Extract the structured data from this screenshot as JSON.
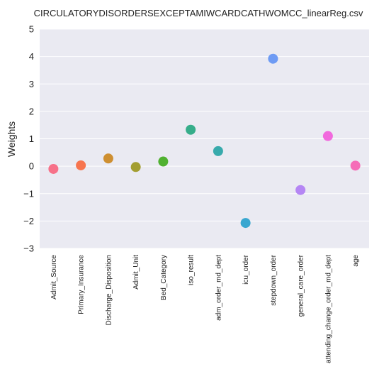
{
  "chart_data": {
    "type": "scatter",
    "title": "CIRCULATORYDISORDERSEXCEPTAMIWCARDCATHWOMCC_linearReg.csv",
    "xlabel": "",
    "ylabel": "Weights",
    "ylim": [
      -3,
      5
    ],
    "yticks": [
      -3,
      -2,
      -1,
      0,
      1,
      2,
      3,
      4,
      5
    ],
    "ytick_labels": [
      "−3",
      "−2",
      "−1",
      "0",
      "1",
      "2",
      "3",
      "4",
      "5"
    ],
    "grid": true,
    "categories": [
      "Admit_Source",
      "Primary_Insurance",
      "Discharge_Disposition",
      "Admit_Unit",
      "Bed_Category",
      "iso_result",
      "adm_order_md_dept",
      "icu_order",
      "stepdown_order",
      "general_care_order",
      "attending_change_order_md_dept",
      "age"
    ],
    "values": [
      -0.1,
      0.03,
      0.28,
      -0.03,
      0.17,
      1.33,
      0.55,
      -2.07,
      3.92,
      -0.87,
      1.1,
      0.02
    ],
    "colors": [
      "#f77189",
      "#f7754f",
      "#ce8f31",
      "#a39e31",
      "#50b131",
      "#36ad8a",
      "#38aaac",
      "#39a7d0",
      "#6e9bf4",
      "#b586f4",
      "#f169dd",
      "#f56db8"
    ],
    "background": "#eaeaf2"
  }
}
